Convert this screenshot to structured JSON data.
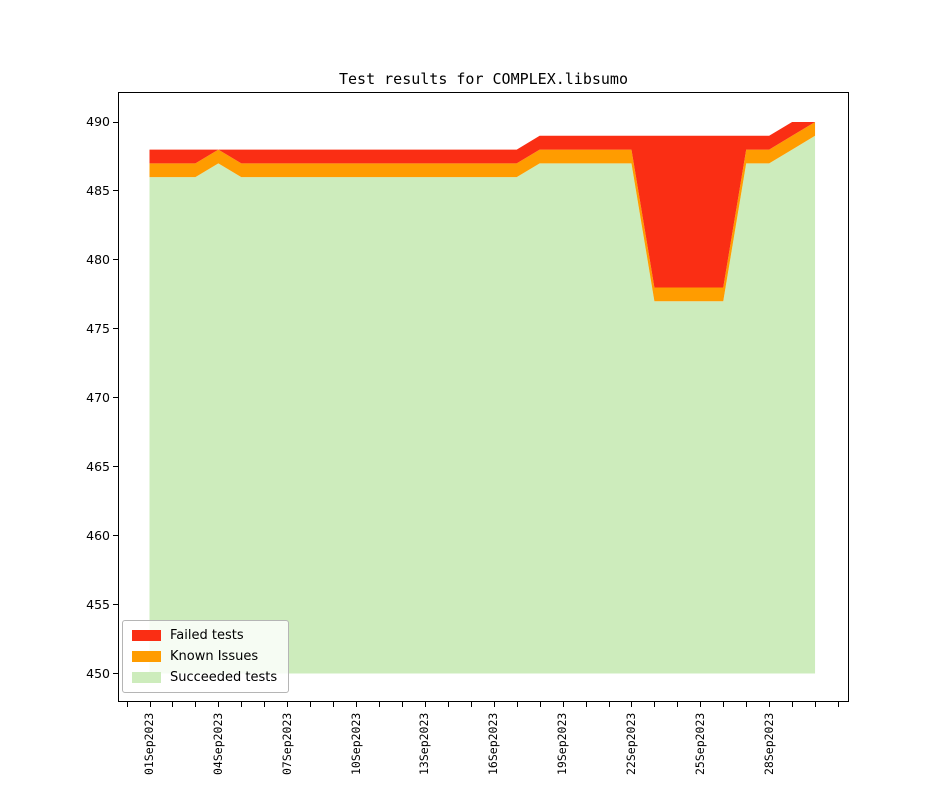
{
  "title": "Test results for COMPLEX.libsumo",
  "colors": {
    "failed": "#fa2e14",
    "known_issues": "#ff9c00",
    "succeeded": "#cdecbc",
    "axis": "#000000",
    "legend_border": "#b5b5b5"
  },
  "legend": {
    "items": [
      {
        "label": "Failed tests",
        "color": "#fa2e14"
      },
      {
        "label": "Known Issues",
        "color": "#ff9c00"
      },
      {
        "label": "Succeeded tests",
        "color": "#cdecbc"
      }
    ]
  },
  "y_axis": {
    "ticks": [
      450,
      455,
      460,
      465,
      470,
      475,
      480,
      485,
      490
    ],
    "range": [
      448,
      492.3
    ]
  },
  "x_axis": {
    "tick_dates": [
      "31Aug2023",
      "01Sep2023",
      "02Sep2023",
      "03Sep2023",
      "04Sep2023",
      "05Sep2023",
      "06Sep2023",
      "07Sep2023",
      "08Sep2023",
      "09Sep2023",
      "10Sep2023",
      "11Sep2023",
      "12Sep2023",
      "13Sep2023",
      "14Sep2023",
      "15Sep2023",
      "16Sep2023",
      "17Sep2023",
      "18Sep2023",
      "19Sep2023",
      "20Sep2023",
      "21Sep2023",
      "22Sep2023",
      "23Sep2023",
      "24Sep2023",
      "25Sep2023",
      "26Sep2023",
      "27Sep2023",
      "28Sep2023",
      "29Sep2023",
      "30Sep2023",
      "01Oct2023"
    ],
    "labeled_dates": [
      "01Sep2023",
      "04Sep2023",
      "07Sep2023",
      "10Sep2023",
      "13Sep2023",
      "16Sep2023",
      "19Sep2023",
      "22Sep2023",
      "25Sep2023",
      "28Sep2023"
    ]
  },
  "chart_data": {
    "type": "area",
    "stacked": true,
    "title": "Test results for COMPLEX.libsumo",
    "xlabel": "",
    "ylabel": "",
    "baseline": 450,
    "ylim": [
      448,
      492.3
    ],
    "grid": false,
    "legend_position": "lower left",
    "x": [
      "01Sep2023",
      "02Sep2023",
      "03Sep2023",
      "04Sep2023",
      "05Sep2023",
      "06Sep2023",
      "07Sep2023",
      "08Sep2023",
      "09Sep2023",
      "10Sep2023",
      "11Sep2023",
      "12Sep2023",
      "13Sep2023",
      "14Sep2023",
      "15Sep2023",
      "16Sep2023",
      "17Sep2023",
      "18Sep2023",
      "19Sep2023",
      "20Sep2023",
      "21Sep2023",
      "22Sep2023",
      "23Sep2023",
      "24Sep2023",
      "25Sep2023",
      "26Sep2023",
      "27Sep2023",
      "28Sep2023",
      "29Sep2023",
      "30Sep2023"
    ],
    "series": [
      {
        "name": "Succeeded tests",
        "color": "#cdecbc",
        "values": [
          486,
          486,
          486,
          487,
          486,
          486,
          486,
          486,
          486,
          486,
          486,
          486,
          486,
          486,
          486,
          486,
          486,
          487,
          487,
          487,
          487,
          487,
          477,
          477,
          477,
          477,
          487,
          487,
          488,
          489
        ]
      },
      {
        "name": "Known Issues",
        "color": "#ff9c00",
        "values": [
          1,
          1,
          1,
          1,
          1,
          1,
          1,
          1,
          1,
          1,
          1,
          1,
          1,
          1,
          1,
          1,
          1,
          1,
          1,
          1,
          1,
          1,
          1,
          1,
          1,
          1,
          1,
          1,
          1,
          1
        ]
      },
      {
        "name": "Failed tests",
        "color": "#fa2e14",
        "values": [
          1,
          1,
          1,
          0,
          1,
          1,
          1,
          1,
          1,
          1,
          1,
          1,
          1,
          1,
          1,
          1,
          1,
          1,
          1,
          1,
          1,
          1,
          11,
          11,
          11,
          11,
          1,
          1,
          1,
          0
        ]
      }
    ]
  }
}
